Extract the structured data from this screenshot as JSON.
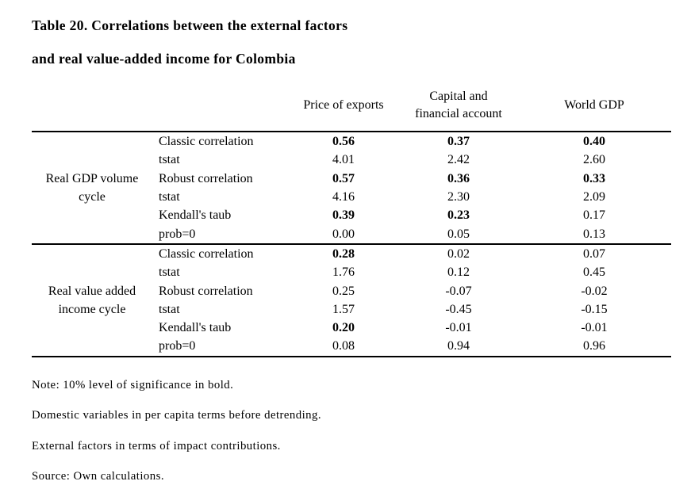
{
  "title": {
    "line1": "Table 20. Correlations between the external factors",
    "line2": "and real value-added income for Colombia"
  },
  "table": {
    "columns": [
      {
        "lines": [
          "Price of exports",
          ""
        ]
      },
      {
        "lines": [
          "Capital and",
          "financial account"
        ]
      },
      {
        "lines": [
          "World GDP",
          ""
        ]
      }
    ],
    "groups": [
      {
        "label_lines": [
          "Real GDP volume",
          "cycle"
        ],
        "rows": [
          {
            "stat": "Classic correlation",
            "values": [
              "0.56",
              "0.37",
              "0.40"
            ],
            "bold": [
              true,
              true,
              true
            ]
          },
          {
            "stat": "tstat",
            "values": [
              "4.01",
              "2.42",
              "2.60"
            ],
            "bold": [
              false,
              false,
              false
            ]
          },
          {
            "stat": "Robust correlation",
            "values": [
              "0.57",
              "0.36",
              "0.33"
            ],
            "bold": [
              true,
              true,
              true
            ]
          },
          {
            "stat": "tstat",
            "values": [
              "4.16",
              "2.30",
              "2.09"
            ],
            "bold": [
              false,
              false,
              false
            ]
          },
          {
            "stat": "Kendall's taub",
            "values": [
              "0.39",
              "0.23",
              "0.17"
            ],
            "bold": [
              true,
              true,
              false
            ]
          },
          {
            "stat": "prob=0",
            "values": [
              "0.00",
              "0.05",
              "0.13"
            ],
            "bold": [
              false,
              false,
              false
            ]
          }
        ]
      },
      {
        "label_lines": [
          "Real value added",
          "income cycle"
        ],
        "rows": [
          {
            "stat": "Classic correlation",
            "values": [
              "0.28",
              "0.02",
              "0.07"
            ],
            "bold": [
              true,
              false,
              false
            ]
          },
          {
            "stat": "tstat",
            "values": [
              "1.76",
              "0.12",
              "0.45"
            ],
            "bold": [
              false,
              false,
              false
            ]
          },
          {
            "stat": "Robust correlation",
            "values": [
              "0.25",
              "-0.07",
              "-0.02"
            ],
            "bold": [
              false,
              false,
              false
            ]
          },
          {
            "stat": "tstat",
            "values": [
              "1.57",
              "-0.45",
              "-0.15"
            ],
            "bold": [
              false,
              false,
              false
            ]
          },
          {
            "stat": "Kendall's taub",
            "values": [
              "0.20",
              "-0.01",
              "-0.01"
            ],
            "bold": [
              true,
              false,
              false
            ]
          },
          {
            "stat": "prob=0",
            "values": [
              "0.08",
              "0.94",
              "0.96"
            ],
            "bold": [
              false,
              false,
              false
            ]
          }
        ]
      }
    ]
  },
  "notes": [
    "Note: 10% level of significance in bold.",
    "Domestic variables in per capita terms before detrending.",
    "External factors in terms of impact contributions.",
    "Source: Own calculations."
  ]
}
